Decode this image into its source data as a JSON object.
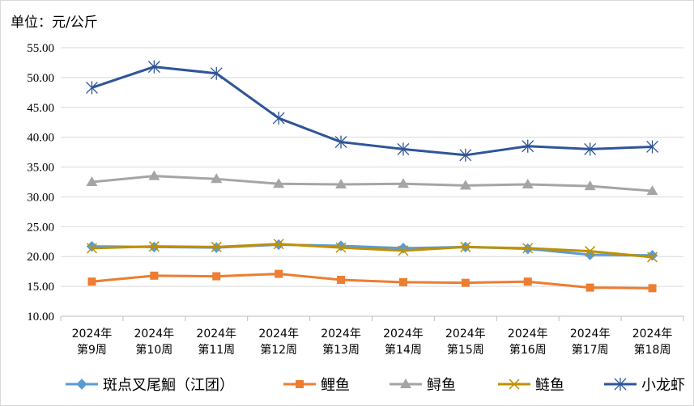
{
  "chart_data": {
    "type": "line",
    "unit_label": "单位：元/公斤",
    "title": "",
    "xlabel": "",
    "ylabel": "",
    "ylim": [
      10,
      55
    ],
    "y_ticks": [
      "10.00",
      "15.00",
      "20.00",
      "25.00",
      "30.00",
      "35.00",
      "40.00",
      "45.00",
      "50.00",
      "55.00"
    ],
    "grid": true,
    "legend_position": "bottom",
    "categories": [
      [
        "2024年",
        "第9周"
      ],
      [
        "2024年",
        "第10周"
      ],
      [
        "2024年",
        "第11周"
      ],
      [
        "2024年",
        "第12周"
      ],
      [
        "2024年",
        "第13周"
      ],
      [
        "2024年",
        "第14周"
      ],
      [
        "2024年",
        "第15周"
      ],
      [
        "2024年",
        "第16周"
      ],
      [
        "2024年",
        "第17周"
      ],
      [
        "2024年",
        "第18周"
      ]
    ],
    "series": [
      {
        "name": "斑点叉尾鮰（江团）",
        "color": "#5b9bd5",
        "marker": "diamond",
        "values": [
          21.7,
          21.6,
          21.5,
          22.0,
          21.8,
          21.4,
          21.6,
          21.3,
          20.3,
          20.2
        ]
      },
      {
        "name": "鲤鱼",
        "color": "#ed7d31",
        "marker": "square",
        "values": [
          15.8,
          16.8,
          16.7,
          17.1,
          16.1,
          15.7,
          15.6,
          15.8,
          14.8,
          14.7
        ]
      },
      {
        "name": "鲟鱼",
        "color": "#a5a5a5",
        "marker": "triangle",
        "values": [
          32.5,
          33.5,
          33.0,
          32.2,
          32.1,
          32.2,
          31.9,
          32.1,
          31.8,
          31.0
        ]
      },
      {
        "name": "鲢鱼",
        "color": "#bf9000",
        "marker": "x",
        "values": [
          21.4,
          21.7,
          21.6,
          22.1,
          21.5,
          21.0,
          21.6,
          21.4,
          20.9,
          19.9
        ]
      },
      {
        "name": "小龙虾",
        "color": "#2f5597",
        "marker": "star",
        "values": [
          48.3,
          51.8,
          50.7,
          43.2,
          39.2,
          38.0,
          37.0,
          38.5,
          38.0,
          38.4
        ]
      }
    ]
  }
}
